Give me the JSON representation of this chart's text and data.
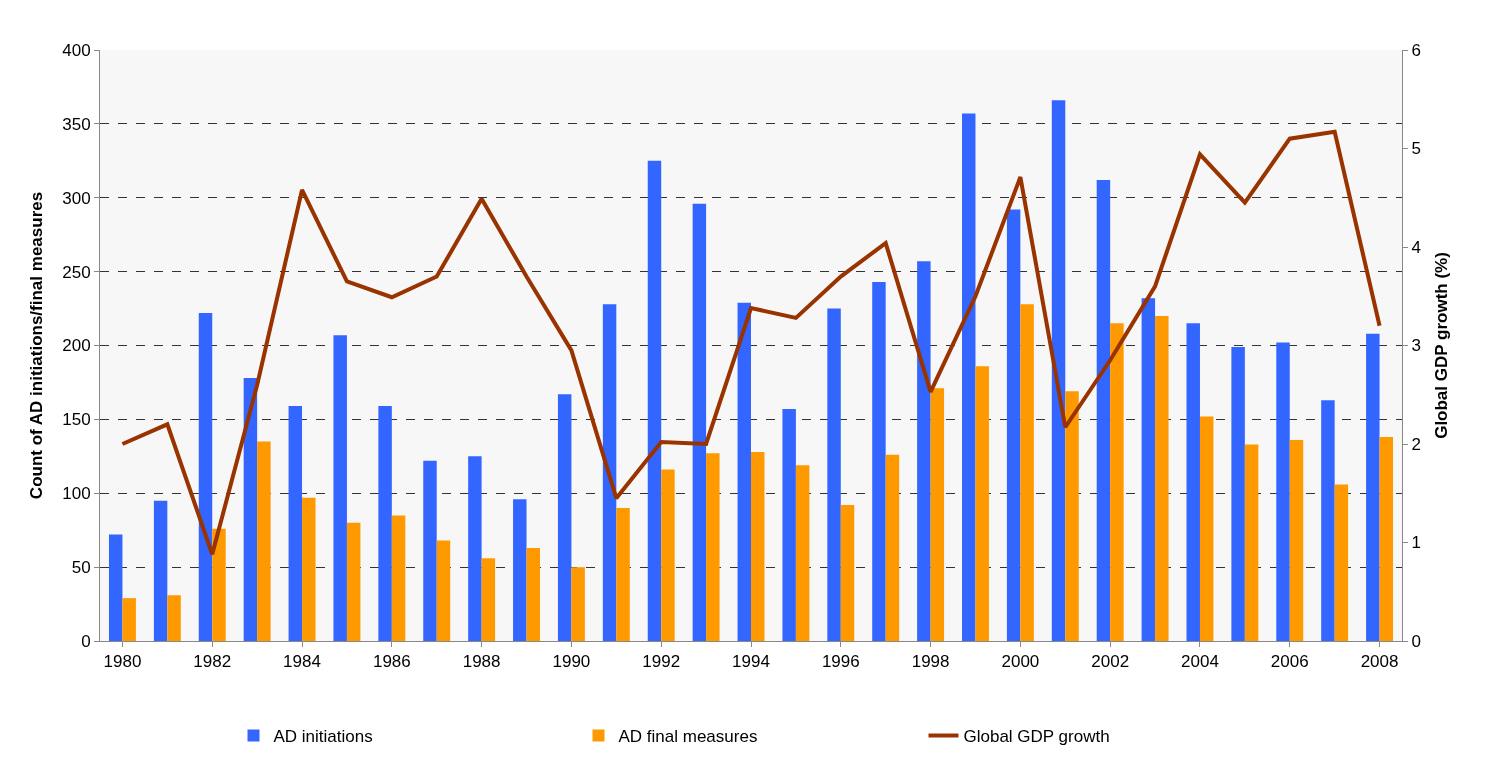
{
  "chart_data": {
    "type": "bar",
    "ylabel": "Count of AD initiations/final measures",
    "y2label": "Global GDP growth (%)",
    "x": [
      1980,
      1981,
      1982,
      1983,
      1984,
      1985,
      1986,
      1987,
      1988,
      1989,
      1990,
      1991,
      1992,
      1993,
      1994,
      1995,
      1996,
      1997,
      1998,
      1999,
      2000,
      2001,
      2002,
      2003,
      2004,
      2005,
      2006,
      2007,
      2008
    ],
    "xlim": [
      1979.5,
      2008.5
    ],
    "xticks": [
      1980,
      1982,
      1984,
      1986,
      1988,
      1990,
      1992,
      1994,
      1996,
      1998,
      2000,
      2002,
      2004,
      2006,
      2008
    ],
    "ylim": [
      0,
      400
    ],
    "yticks": [
      0,
      50,
      100,
      150,
      200,
      250,
      300,
      350,
      400
    ],
    "y2lim": [
      0,
      6
    ],
    "y2ticks": [
      0,
      1,
      2,
      3,
      4,
      5,
      6
    ],
    "grid": "y",
    "legend": "bottom",
    "series": [
      {
        "name": "AD initiations",
        "color": "#3366ff",
        "values": [
          72,
          95,
          222,
          178,
          159,
          207,
          159,
          122,
          125,
          96,
          167,
          228,
          325,
          296,
          229,
          157,
          225,
          243,
          257,
          357,
          292,
          366,
          312,
          232,
          215,
          199,
          202,
          163,
          208
        ]
      },
      {
        "name": "AD final measures",
        "color": "#ff9900",
        "values": [
          29,
          31,
          76,
          135,
          97,
          80,
          85,
          68,
          56,
          63,
          50,
          90,
          116,
          127,
          128,
          119,
          92,
          126,
          171,
          186,
          228,
          169,
          215,
          220,
          152,
          133,
          136,
          106,
          138
        ]
      },
      {
        "name": "Global GDP growth",
        "color": "#993300",
        "type": "line",
        "axis": "y2",
        "marker": "none",
        "line_style": "solid",
        "values": [
          2.0,
          2.2,
          0.88,
          2.6,
          4.58,
          3.65,
          3.49,
          3.7,
          4.49,
          3.7,
          2.95,
          1.45,
          2.02,
          2.0,
          3.38,
          3.28,
          3.7,
          4.04,
          2.53,
          3.5,
          4.71,
          2.17,
          2.85,
          3.6,
          4.94,
          4.45,
          5.1,
          5.17,
          3.2
        ]
      }
    ]
  }
}
